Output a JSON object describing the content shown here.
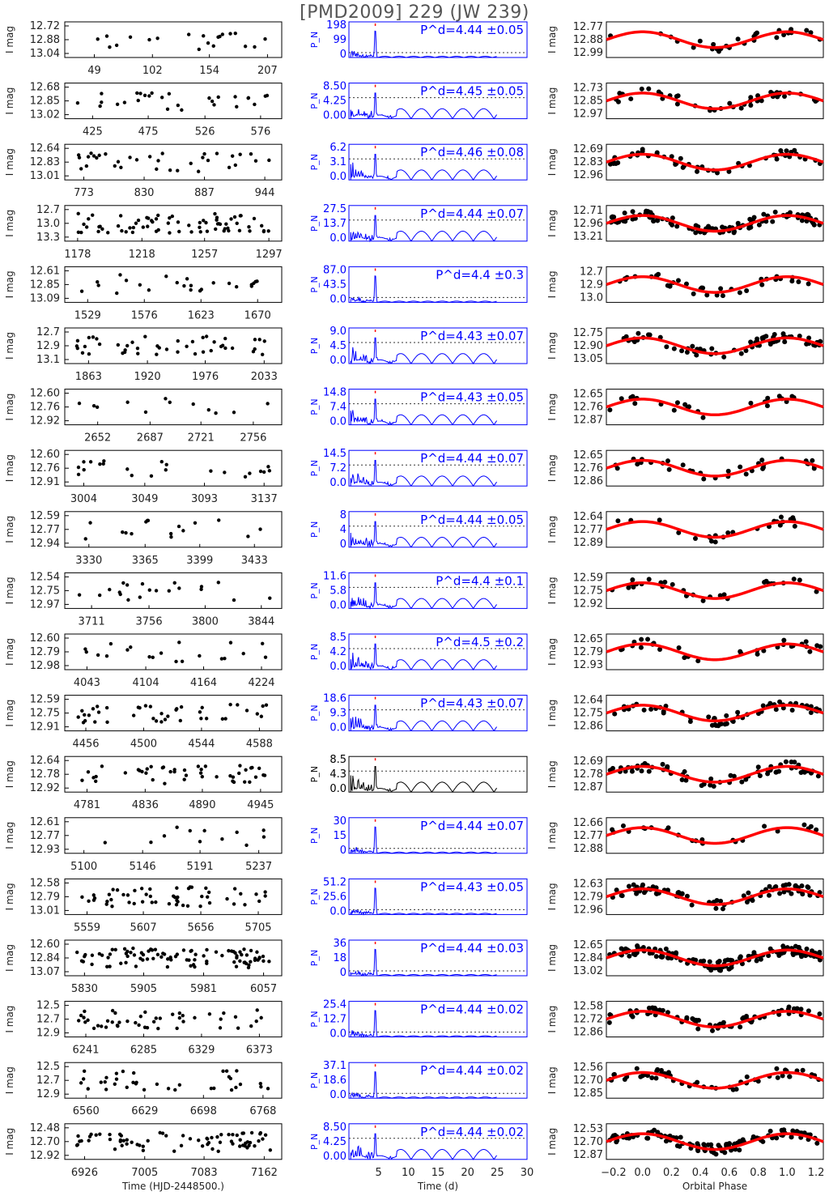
{
  "figure_title": "[PMD2009] 229 (JW 239)",
  "colors": {
    "lightcurve": "#000000",
    "periodogram": "#0000ff",
    "periodogram_alt": "#000000",
    "fit": "#ff0000",
    "peak_marker": "#ff0000"
  },
  "axis_labels": {
    "time_xlabel": "Time (HJD-2448500.)",
    "period_xlabel": "Time (d)",
    "phase_xlabel": "Orbital Phase",
    "mag_ylabel": "I mag",
    "pn_ylabel": "P_N"
  },
  "shared_axes": {
    "period_xticks": [
      "5",
      "10",
      "15",
      "20",
      "25",
      "30"
    ],
    "period_xlim": [
      0,
      30
    ],
    "phase_xticks": [
      "−0.2",
      "0.0",
      "0.2",
      "0.4",
      "0.6",
      "0.8",
      "1.0",
      "1.2"
    ],
    "phase_xlim": [
      -0.25,
      1.25
    ]
  },
  "chart_data": [
    {
      "type": "scatter",
      "time_ticks": [
        "49",
        "102",
        "154",
        "207"
      ],
      "time_range": [
        22,
        220
      ],
      "mag_ticks": [
        "12.72",
        "12.88",
        "13.04"
      ],
      "pn_ticks": [
        "198",
        "99",
        "0"
      ],
      "period_label": "P^d=4.44 ±0.05",
      "phase_mag_ticks": [
        "12.77",
        "12.88",
        "12.99"
      ],
      "npts": 20,
      "pn_type": "narrow",
      "pn_color": "blue"
    },
    {
      "type": "scatter",
      "time_ticks": [
        "425",
        "475",
        "526",
        "576"
      ],
      "time_range": [
        400,
        595
      ],
      "mag_ticks": [
        "12.68",
        "12.85",
        "13.02"
      ],
      "pn_ticks": [
        "8.50",
        "4.25",
        "0.00"
      ],
      "period_label": "P^d=4.45 ±0.05",
      "phase_mag_ticks": [
        "12.73",
        "12.85",
        "12.97"
      ],
      "npts": 28,
      "pn_type": "noisy",
      "pn_color": "blue"
    },
    {
      "type": "scatter",
      "time_ticks": [
        "773",
        "830",
        "887",
        "944"
      ],
      "time_range": [
        755,
        960
      ],
      "mag_ticks": [
        "12.64",
        "12.83",
        "13.01"
      ],
      "pn_ticks": [
        "6.2",
        "3.1",
        "0.0"
      ],
      "period_label": "P^d=4.46 ±0.08",
      "phase_mag_ticks": [
        "12.69",
        "12.83",
        "12.96"
      ],
      "npts": 34,
      "pn_type": "noisy",
      "pn_color": "blue"
    },
    {
      "type": "scatter",
      "time_ticks": [
        "1178",
        "1218",
        "1257",
        "1297"
      ],
      "time_range": [
        1170,
        1305
      ],
      "mag_ticks": [
        "12.7",
        "13.0",
        "13.3"
      ],
      "pn_ticks": [
        "27.5",
        "13.7",
        "0.0"
      ],
      "period_label": "P^d=4.44 ±0.07",
      "phase_mag_ticks": [
        "12.71",
        "12.96",
        "13.21"
      ],
      "npts": 70,
      "pn_type": "noisy",
      "pn_color": "blue"
    },
    {
      "type": "scatter",
      "time_ticks": [
        "1529",
        "1576",
        "1623",
        "1670"
      ],
      "time_range": [
        1510,
        1690
      ],
      "mag_ticks": [
        "12.61",
        "12.85",
        "13.09"
      ],
      "pn_ticks": [
        "87.0",
        "43.5",
        "0.0"
      ],
      "period_label": "P^d=4.4 ±0.3",
      "phase_mag_ticks": [
        "12.7",
        "12.9",
        "13.0"
      ],
      "npts": 24,
      "pn_type": "narrow",
      "pn_color": "blue"
    },
    {
      "type": "scatter",
      "time_ticks": [
        "1863",
        "1920",
        "1976",
        "2033"
      ],
      "time_range": [
        1840,
        2050
      ],
      "mag_ticks": [
        "12.7",
        "12.9",
        "13.1"
      ],
      "pn_ticks": [
        "9.0",
        "4.5",
        "0.0"
      ],
      "period_label": "P^d=4.43 ±0.07",
      "phase_mag_ticks": [
        "12.75",
        "12.90",
        "13.05"
      ],
      "npts": 44,
      "pn_type": "noisy",
      "pn_color": "blue"
    },
    {
      "type": "scatter",
      "time_ticks": [
        "2652",
        "2687",
        "2721",
        "2756"
      ],
      "time_range": [
        2630,
        2775
      ],
      "mag_ticks": [
        "12.60",
        "12.76",
        "12.92"
      ],
      "pn_ticks": [
        "14.8",
        "7.4",
        "0.0"
      ],
      "period_label": "P^d=4.43 ±0.05",
      "phase_mag_ticks": [
        "12.65",
        "12.76",
        "12.87"
      ],
      "npts": 12,
      "pn_type": "noisy",
      "pn_color": "blue"
    },
    {
      "type": "scatter",
      "time_ticks": [
        "3004",
        "3049",
        "3093",
        "3137"
      ],
      "time_range": [
        2990,
        3150
      ],
      "mag_ticks": [
        "12.60",
        "12.76",
        "12.91"
      ],
      "pn_ticks": [
        "14.5",
        "7.2",
        "0.0"
      ],
      "period_label": "P^d=4.44 ±0.07",
      "phase_mag_ticks": [
        "12.65",
        "12.76",
        "12.86"
      ],
      "npts": 22,
      "pn_type": "noisy",
      "pn_color": "blue"
    },
    {
      "type": "scatter",
      "time_ticks": [
        "3330",
        "3365",
        "3399",
        "3433"
      ],
      "time_range": [
        3315,
        3450
      ],
      "mag_ticks": [
        "12.59",
        "12.77",
        "12.94"
      ],
      "pn_ticks": [
        "8",
        "4",
        "0"
      ],
      "period_label": "P^d=4.44 ±0.05",
      "phase_mag_ticks": [
        "12.64",
        "12.77",
        "12.89"
      ],
      "npts": 16,
      "pn_type": "noisy",
      "pn_color": "blue"
    },
    {
      "type": "scatter",
      "time_ticks": [
        "3711",
        "3756",
        "3800",
        "3844"
      ],
      "time_range": [
        3690,
        3860
      ],
      "mag_ticks": [
        "12.54",
        "12.75",
        "12.97"
      ],
      "pn_ticks": [
        "11.6",
        "5.8",
        "0.0"
      ],
      "period_label": "P^d=4.4 ±0.1",
      "phase_mag_ticks": [
        "12.59",
        "12.75",
        "12.92"
      ],
      "npts": 20,
      "pn_type": "noisy",
      "pn_color": "blue"
    },
    {
      "type": "scatter",
      "time_ticks": [
        "4043",
        "4104",
        "4164",
        "4224"
      ],
      "time_range": [
        4020,
        4245
      ],
      "mag_ticks": [
        "12.60",
        "12.79",
        "12.98"
      ],
      "pn_ticks": [
        "8.5",
        "4.2",
        "0.0"
      ],
      "period_label": "P^d=4.5 ±0.2",
      "phase_mag_ticks": [
        "12.65",
        "12.79",
        "12.93"
      ],
      "npts": 20,
      "pn_type": "noisy",
      "pn_color": "blue"
    },
    {
      "type": "scatter",
      "time_ticks": [
        "4456",
        "4500",
        "4544",
        "4588"
      ],
      "time_range": [
        4440,
        4605
      ],
      "mag_ticks": [
        "12.59",
        "12.75",
        "12.91"
      ],
      "pn_ticks": [
        "18.6",
        "9.3",
        "0.0"
      ],
      "period_label": "P^d=4.43 ±0.07",
      "phase_mag_ticks": [
        "12.64",
        "12.75",
        "12.86"
      ],
      "npts": 40,
      "pn_type": "noisy",
      "pn_color": "blue"
    },
    {
      "type": "scatter",
      "time_ticks": [
        "4781",
        "4836",
        "4890",
        "4945"
      ],
      "time_range": [
        4760,
        4965
      ],
      "mag_ticks": [
        "12.64",
        "12.78",
        "12.92"
      ],
      "pn_ticks": [
        "8.5",
        "4.3",
        "0.0"
      ],
      "period_label": "",
      "phase_mag_ticks": [
        "12.69",
        "12.78",
        "12.87"
      ],
      "npts": 44,
      "pn_type": "noisy",
      "pn_color": "black"
    },
    {
      "type": "scatter",
      "time_ticks": [
        "5100",
        "5146",
        "5191",
        "5237"
      ],
      "time_range": [
        5085,
        5255
      ],
      "mag_ticks": [
        "12.61",
        "12.77",
        "12.93"
      ],
      "pn_ticks": [
        "30",
        "15",
        "0"
      ],
      "period_label": "P^d=4.44 ±0.07",
      "phase_mag_ticks": [
        "12.66",
        "12.77",
        "12.88"
      ],
      "npts": 12,
      "pn_type": "narrow",
      "pn_color": "blue"
    },
    {
      "type": "scatter",
      "time_ticks": [
        "5559",
        "5607",
        "5656",
        "5705"
      ],
      "time_range": [
        5540,
        5725
      ],
      "mag_ticks": [
        "12.58",
        "12.79",
        "13.01"
      ],
      "pn_ticks": [
        "51.2",
        "25.6",
        "0.0"
      ],
      "period_label": "P^d=4.43 ±0.05",
      "phase_mag_ticks": [
        "12.63",
        "12.79",
        "12.96"
      ],
      "npts": 52,
      "pn_type": "narrow",
      "pn_color": "blue"
    },
    {
      "type": "scatter",
      "time_ticks": [
        "5830",
        "5905",
        "5981",
        "6057"
      ],
      "time_range": [
        5805,
        6080
      ],
      "mag_ticks": [
        "12.60",
        "12.84",
        "13.07"
      ],
      "pn_ticks": [
        "36",
        "18",
        "0"
      ],
      "period_label": "P^d=4.44 ±0.03",
      "phase_mag_ticks": [
        "12.65",
        "12.84",
        "13.02"
      ],
      "npts": 90,
      "pn_type": "narrow",
      "pn_color": "blue"
    },
    {
      "type": "scatter",
      "time_ticks": [
        "6241",
        "6285",
        "6329",
        "6373"
      ],
      "time_range": [
        6225,
        6390
      ],
      "mag_ticks": [
        "12.5",
        "12.7",
        "12.9"
      ],
      "pn_ticks": [
        "25.4",
        "12.7",
        "0.0"
      ],
      "period_label": "P^d=4.44 ±0.02",
      "phase_mag_ticks": [
        "12.58",
        "12.72",
        "12.86"
      ],
      "npts": 45,
      "pn_type": "narrow",
      "pn_color": "blue"
    },
    {
      "type": "scatter",
      "time_ticks": [
        "6560",
        "6629",
        "6698",
        "6768"
      ],
      "time_range": [
        6535,
        6790
      ],
      "mag_ticks": [
        "12.5",
        "12.7",
        "12.9"
      ],
      "pn_ticks": [
        "37.1",
        "18.6",
        "0.0"
      ],
      "period_label": "P^d=4.44 ±0.02",
      "phase_mag_ticks": [
        "12.56",
        "12.70",
        "12.85"
      ],
      "npts": 35,
      "pn_type": "narrow",
      "pn_color": "blue"
    },
    {
      "type": "scatter",
      "time_ticks": [
        "6926",
        "7005",
        "7083",
        "7162"
      ],
      "time_range": [
        6900,
        7185
      ],
      "mag_ticks": [
        "12.48",
        "12.70",
        "12.92"
      ],
      "pn_ticks": [
        "8.50",
        "4.25",
        "0.00"
      ],
      "period_label": "P^d=4.44 ±0.02",
      "phase_mag_ticks": [
        "12.53",
        "12.70",
        "12.87"
      ],
      "npts": 70,
      "pn_type": "noisy",
      "pn_color": "blue"
    }
  ]
}
